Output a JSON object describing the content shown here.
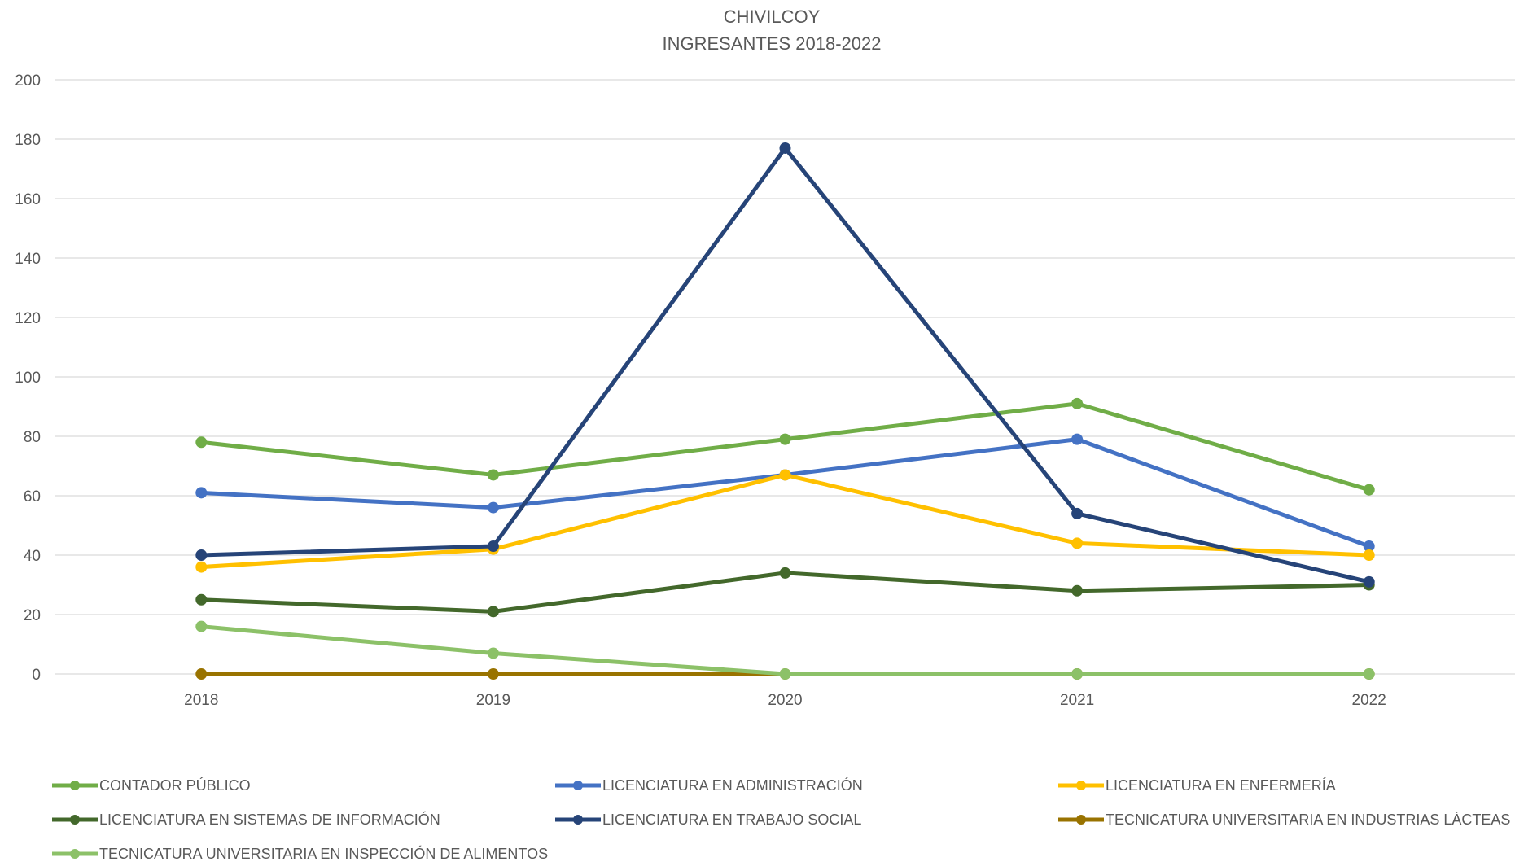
{
  "chart_data": {
    "type": "line",
    "title": "CHIVILCOY",
    "subtitle": "INGRESANTES 2018-2022",
    "xlabel": "",
    "ylabel": "",
    "categories": [
      "2018",
      "2019",
      "2020",
      "2021",
      "2022"
    ],
    "ylim": [
      0,
      200
    ],
    "yticks": [
      0,
      20,
      40,
      60,
      80,
      100,
      120,
      140,
      160,
      180,
      200
    ],
    "grid": true,
    "legend_position": "bottom",
    "series": [
      {
        "name": "CONTADOR PÚBLICO",
        "color": "#70ad47",
        "values": [
          78,
          67,
          79,
          91,
          62
        ]
      },
      {
        "name": "LICENCIATURA EN ADMINISTRACIÓN",
        "color": "#4472c4",
        "values": [
          61,
          56,
          67,
          79,
          43
        ]
      },
      {
        "name": "LICENCIATURA EN ENFERMERÍA",
        "color": "#ffc000",
        "values": [
          36,
          42,
          67,
          44,
          40
        ]
      },
      {
        "name": "LICENCIATURA EN SISTEMAS DE INFORMACIÓN",
        "color": "#43682b",
        "values": [
          25,
          21,
          34,
          28,
          30
        ]
      },
      {
        "name": "LICENCIATURA EN TRABAJO SOCIAL",
        "color": "#264478",
        "values": [
          40,
          43,
          177,
          54,
          31
        ]
      },
      {
        "name": "TECNICATURA UNIVERSITARIA EN INDUSTRIAS LÁCTEAS",
        "color": "#997300",
        "values": [
          0,
          0,
          0,
          0,
          0
        ]
      },
      {
        "name": "TECNICATURA UNIVERSITARIA EN INSPECCIÓN DE ALIMENTOS",
        "color": "#8cc168",
        "values": [
          16,
          7,
          0,
          0,
          0
        ]
      }
    ]
  }
}
